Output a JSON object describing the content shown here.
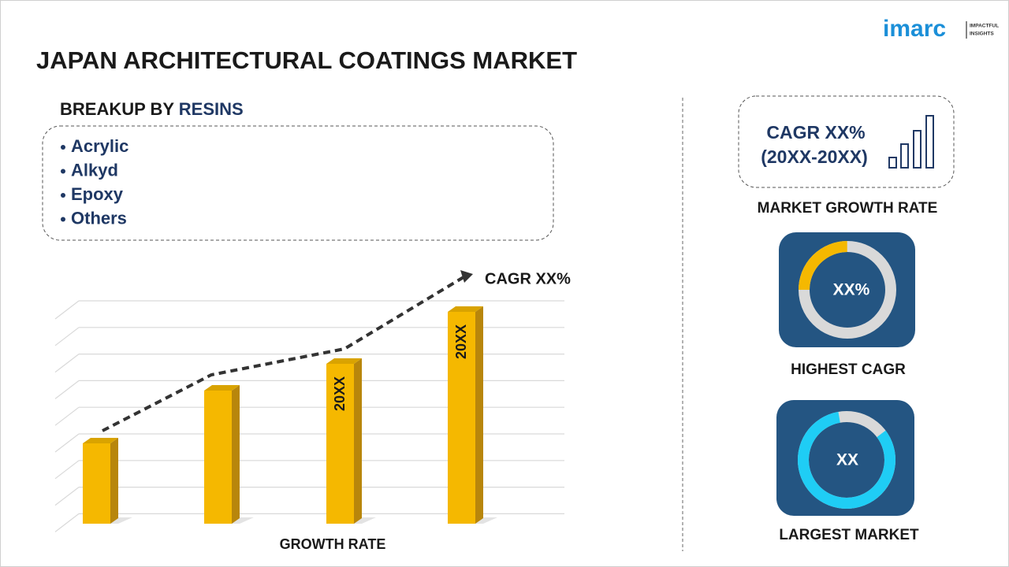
{
  "header": {
    "title": "JAPAN ARCHITECTURAL COATINGS MARKET",
    "logo": "imarc",
    "logo_tagline": [
      "IMPACTFUL",
      "INSIGHTS"
    ]
  },
  "breakup": {
    "label": "BREAKUP BY",
    "segment": "RESINS",
    "items": [
      "Acrylic",
      "Alkyd",
      "Epoxy",
      "Others"
    ]
  },
  "chart": {
    "annotation": "CAGR XX%",
    "bar_labels": [
      "20XX",
      "20XX"
    ],
    "axis_label": "GROWTH RATE"
  },
  "cards": [
    {
      "lines": [
        "CAGR XX%",
        "(20XX-20XX)"
      ],
      "caption": "MARKET GROWTH RATE"
    },
    {
      "value": "XX%",
      "caption": "HIGHEST CAGR"
    },
    {
      "value": "XX",
      "caption": "LARGEST MARKET"
    }
  ]
}
